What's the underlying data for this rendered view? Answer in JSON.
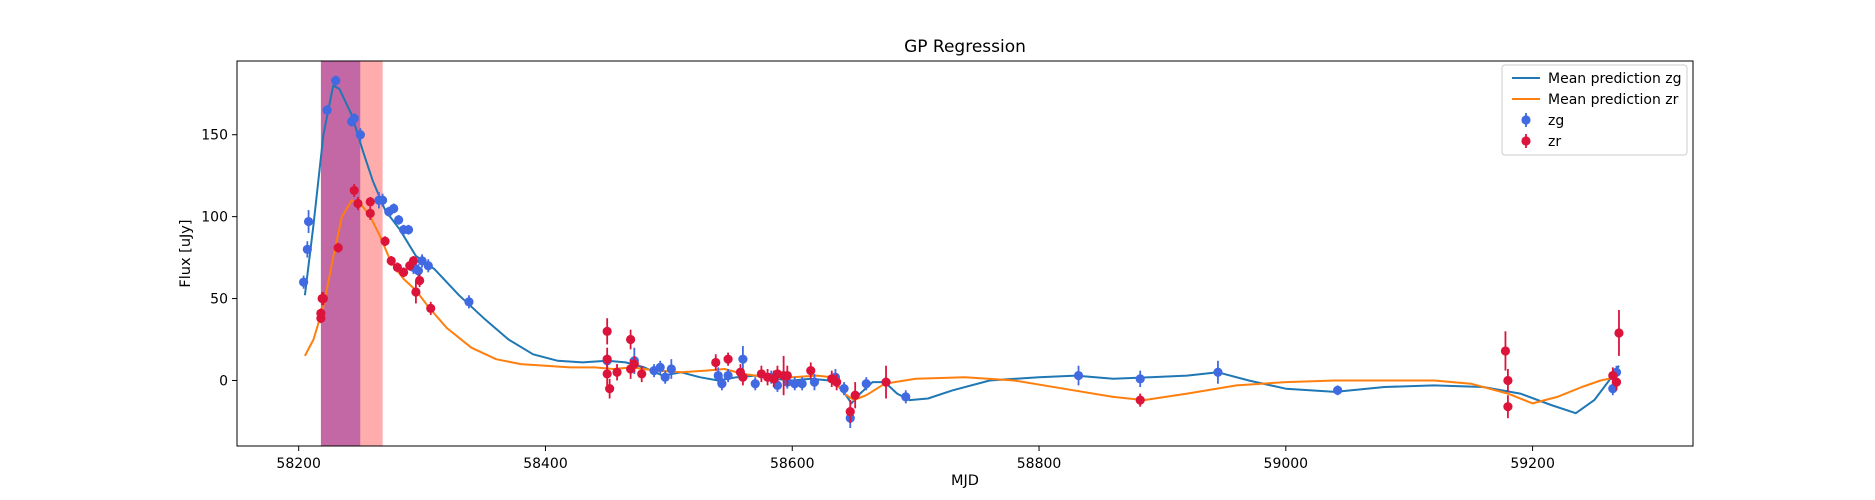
{
  "chart_data": {
    "type": "scatter",
    "title": "GP Regression",
    "xlabel": "MJD",
    "ylabel": "Flux [uJy]",
    "xlim": [
      58150,
      59330
    ],
    "ylim": [
      -40,
      195
    ],
    "xticks": [
      58200,
      58400,
      58600,
      58800,
      59000,
      59200
    ],
    "yticks": [
      0,
      50,
      100,
      150
    ],
    "grid": false,
    "legend_position": "top-right",
    "shaded_regions": [
      {
        "x0": 58218,
        "x1": 58250,
        "color": "#c0609f"
      },
      {
        "x0": 58250,
        "x1": 58268,
        "color": "#ffa8a8"
      }
    ],
    "series": [
      {
        "name": "Mean prediction zg",
        "kind": "line",
        "color": "#1f77b4",
        "points": [
          [
            58205,
            52
          ],
          [
            58212,
            95
          ],
          [
            58220,
            150
          ],
          [
            58228,
            180
          ],
          [
            58233,
            178
          ],
          [
            58243,
            162
          ],
          [
            58252,
            140
          ],
          [
            58260,
            122
          ],
          [
            58270,
            104
          ],
          [
            58282,
            92
          ],
          [
            58295,
            76
          ],
          [
            58310,
            68
          ],
          [
            58330,
            52
          ],
          [
            58350,
            38
          ],
          [
            58370,
            25
          ],
          [
            58390,
            16
          ],
          [
            58410,
            12
          ],
          [
            58430,
            11
          ],
          [
            58450,
            12
          ],
          [
            58465,
            11
          ],
          [
            58480,
            8
          ],
          [
            58495,
            3
          ],
          [
            58510,
            5
          ],
          [
            58525,
            2
          ],
          [
            58540,
            0
          ],
          [
            58555,
            2
          ],
          [
            58570,
            3
          ],
          [
            58585,
            1
          ],
          [
            58600,
            0
          ],
          [
            58615,
            1
          ],
          [
            58630,
            0
          ],
          [
            58640,
            -5
          ],
          [
            58648,
            -14
          ],
          [
            58655,
            -8
          ],
          [
            58665,
            -1
          ],
          [
            58675,
            -1
          ],
          [
            58685,
            -8
          ],
          [
            58695,
            -12
          ],
          [
            58710,
            -11
          ],
          [
            58730,
            -6
          ],
          [
            58760,
            0
          ],
          [
            58800,
            2
          ],
          [
            58830,
            3
          ],
          [
            58860,
            1
          ],
          [
            58890,
            2
          ],
          [
            58920,
            3
          ],
          [
            58945,
            5
          ],
          [
            58970,
            0
          ],
          [
            59000,
            -5
          ],
          [
            59040,
            -7
          ],
          [
            59080,
            -4
          ],
          [
            59120,
            -3
          ],
          [
            59160,
            -4
          ],
          [
            59190,
            -8
          ],
          [
            59215,
            -15
          ],
          [
            59235,
            -20
          ],
          [
            59250,
            -12
          ],
          [
            59262,
            0
          ],
          [
            59270,
            9
          ]
        ]
      },
      {
        "name": "Mean prediction zr",
        "kind": "line",
        "color": "#ff7f0e",
        "points": [
          [
            58205,
            15
          ],
          [
            58212,
            25
          ],
          [
            58220,
            45
          ],
          [
            58228,
            75
          ],
          [
            58235,
            100
          ],
          [
            58243,
            110
          ],
          [
            58250,
            108
          ],
          [
            58258,
            100
          ],
          [
            58266,
            88
          ],
          [
            58275,
            72
          ],
          [
            58285,
            62
          ],
          [
            58295,
            55
          ],
          [
            58305,
            45
          ],
          [
            58320,
            32
          ],
          [
            58340,
            20
          ],
          [
            58360,
            13
          ],
          [
            58380,
            10
          ],
          [
            58400,
            9
          ],
          [
            58420,
            8
          ],
          [
            58440,
            8
          ],
          [
            58455,
            7
          ],
          [
            58470,
            8
          ],
          [
            58490,
            6
          ],
          [
            58510,
            5
          ],
          [
            58530,
            6
          ],
          [
            58545,
            7
          ],
          [
            58560,
            4
          ],
          [
            58580,
            2
          ],
          [
            58600,
            2
          ],
          [
            58620,
            3
          ],
          [
            58632,
            2
          ],
          [
            58642,
            -8
          ],
          [
            58650,
            -12
          ],
          [
            58660,
            -9
          ],
          [
            58675,
            -2
          ],
          [
            58700,
            1
          ],
          [
            58740,
            2
          ],
          [
            58780,
            0
          ],
          [
            58820,
            -5
          ],
          [
            58860,
            -10
          ],
          [
            58885,
            -12
          ],
          [
            58920,
            -8
          ],
          [
            58960,
            -3
          ],
          [
            59000,
            -1
          ],
          [
            59040,
            0
          ],
          [
            59080,
            0
          ],
          [
            59120,
            0
          ],
          [
            59150,
            -2
          ],
          [
            59180,
            -8
          ],
          [
            59200,
            -14
          ],
          [
            59220,
            -10
          ],
          [
            59240,
            -4
          ],
          [
            59255,
            0
          ],
          [
            59268,
            2
          ]
        ]
      },
      {
        "name": "zg",
        "kind": "errorbar",
        "color": "#4169e1",
        "points": [
          [
            58204,
            60,
            4
          ],
          [
            58207,
            80,
            5
          ],
          [
            58208,
            97,
            7
          ],
          [
            58223,
            165,
            3
          ],
          [
            58230,
            183,
            3
          ],
          [
            58243,
            158,
            3
          ],
          [
            58245,
            160,
            3
          ],
          [
            58250,
            150,
            4
          ],
          [
            58265,
            110,
            5
          ],
          [
            58268,
            110,
            4
          ],
          [
            58273,
            103,
            3
          ],
          [
            58277,
            105,
            3
          ],
          [
            58281,
            98,
            3
          ],
          [
            58285,
            92,
            3
          ],
          [
            58289,
            92,
            3
          ],
          [
            58293,
            69,
            4
          ],
          [
            58297,
            67,
            4
          ],
          [
            58300,
            73,
            4
          ],
          [
            58305,
            70,
            4
          ],
          [
            58338,
            48,
            4
          ],
          [
            58450,
            12,
            4
          ],
          [
            58472,
            12,
            8
          ],
          [
            58488,
            6,
            4
          ],
          [
            58493,
            8,
            4
          ],
          [
            58497,
            2,
            4
          ],
          [
            58502,
            7,
            6
          ],
          [
            58540,
            3,
            5
          ],
          [
            58543,
            -2,
            4
          ],
          [
            58548,
            3,
            4
          ],
          [
            58560,
            13,
            8
          ],
          [
            58570,
            -2,
            4
          ],
          [
            58583,
            2,
            4
          ],
          [
            58588,
            -3,
            4
          ],
          [
            58596,
            -1,
            4
          ],
          [
            58602,
            -2,
            4
          ],
          [
            58608,
            -2,
            4
          ],
          [
            58618,
            -1,
            5
          ],
          [
            58635,
            2,
            5
          ],
          [
            58642,
            -5,
            4
          ],
          [
            58647,
            -23,
            6
          ],
          [
            58660,
            -2,
            4
          ],
          [
            58692,
            -10,
            4
          ],
          [
            58832,
            3,
            6
          ],
          [
            58882,
            1,
            5
          ],
          [
            58945,
            5,
            7
          ],
          [
            59042,
            -6,
            3
          ],
          [
            59265,
            -5,
            4
          ],
          [
            59268,
            5,
            4
          ]
        ]
      },
      {
        "name": "zr",
        "kind": "errorbar",
        "color": "#dc143c",
        "points": [
          [
            58218,
            38,
            3
          ],
          [
            58218,
            41,
            3
          ],
          [
            58219,
            50,
            4
          ],
          [
            58220,
            50,
            4
          ],
          [
            58232,
            81,
            3
          ],
          [
            58245,
            116,
            4
          ],
          [
            58248,
            108,
            4
          ],
          [
            58258,
            102,
            4
          ],
          [
            58258,
            109,
            3
          ],
          [
            58270,
            85,
            3
          ],
          [
            58275,
            73,
            3
          ],
          [
            58280,
            69,
            3
          ],
          [
            58285,
            66,
            3
          ],
          [
            58290,
            70,
            3
          ],
          [
            58293,
            73,
            3
          ],
          [
            58295,
            54,
            7
          ],
          [
            58298,
            61,
            4
          ],
          [
            58307,
            44,
            4
          ],
          [
            58450,
            30,
            8
          ],
          [
            58450,
            13,
            7
          ],
          [
            58450,
            4,
            7
          ],
          [
            58452,
            -5,
            6
          ],
          [
            58458,
            5,
            5
          ],
          [
            58469,
            25,
            6
          ],
          [
            58469,
            7,
            6
          ],
          [
            58472,
            10,
            5
          ],
          [
            58478,
            4,
            5
          ],
          [
            58538,
            11,
            5
          ],
          [
            58548,
            13,
            4
          ],
          [
            58558,
            5,
            5
          ],
          [
            58560,
            2,
            5
          ],
          [
            58575,
            4,
            5
          ],
          [
            58580,
            2,
            5
          ],
          [
            58585,
            1,
            5
          ],
          [
            58588,
            4,
            5
          ],
          [
            58593,
            3,
            12
          ],
          [
            58596,
            3,
            6
          ],
          [
            58615,
            6,
            5
          ],
          [
            58632,
            1,
            5
          ],
          [
            58636,
            -1,
            5
          ],
          [
            58647,
            -19,
            7
          ],
          [
            58651,
            -9,
            8
          ],
          [
            58676,
            -1,
            10
          ],
          [
            58882,
            -12,
            4
          ],
          [
            59178,
            18,
            12
          ],
          [
            59180,
            0,
            7
          ],
          [
            59180,
            -16,
            7
          ],
          [
            59265,
            3,
            5
          ],
          [
            59268,
            -1,
            5
          ],
          [
            59270,
            29,
            14
          ]
        ]
      }
    ]
  },
  "legend": {
    "items": [
      {
        "label": "Mean prediction zg",
        "kind": "line",
        "color": "#1f77b4"
      },
      {
        "label": "Mean prediction zr",
        "kind": "line",
        "color": "#ff7f0e"
      },
      {
        "label": "zg",
        "kind": "marker",
        "color": "#4169e1"
      },
      {
        "label": "zr",
        "kind": "marker",
        "color": "#dc143c"
      }
    ]
  }
}
